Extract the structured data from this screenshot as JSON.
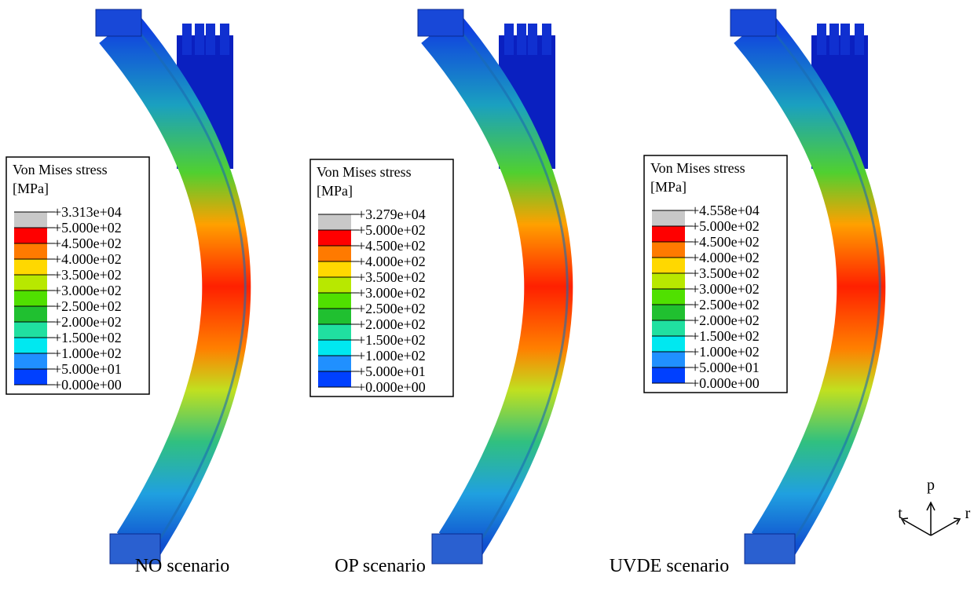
{
  "panels": [
    {
      "legend": {
        "title": "Von Mises stress",
        "unit": "[MPa]",
        "labels": [
          "+3.313e+04",
          "+5.000e+02",
          "+4.500e+02",
          "+4.000e+02",
          "+3.500e+02",
          "+3.000e+02",
          "+2.500e+02",
          "+2.000e+02",
          "+1.500e+02",
          "+1.000e+02",
          "+5.000e+01",
          "+0.000e+00"
        ]
      },
      "caption": "NO scenario"
    },
    {
      "legend": {
        "title": "Von Mises stress",
        "unit": "[MPa]",
        "labels": [
          "+3.279e+04",
          "+5.000e+02",
          "+4.500e+02",
          "+4.000e+02",
          "+3.500e+02",
          "+3.000e+02",
          "+2.500e+02",
          "+2.000e+02",
          "+1.500e+02",
          "+1.000e+02",
          "+5.000e+01",
          "+0.000e+00"
        ]
      },
      "caption": "OP scenario"
    },
    {
      "legend": {
        "title": "Von Mises stress",
        "unit": "[MPa]",
        "labels": [
          "+4.558e+04",
          "+5.000e+02",
          "+4.500e+02",
          "+4.000e+02",
          "+3.500e+02",
          "+3.000e+02",
          "+2.500e+02",
          "+2.000e+02",
          "+1.500e+02",
          "+1.000e+02",
          "+5.000e+01",
          "+0.000e+00"
        ]
      },
      "caption": "UVDE scenario"
    }
  ],
  "axes": {
    "p": "p",
    "t": "t",
    "r": "r"
  }
}
